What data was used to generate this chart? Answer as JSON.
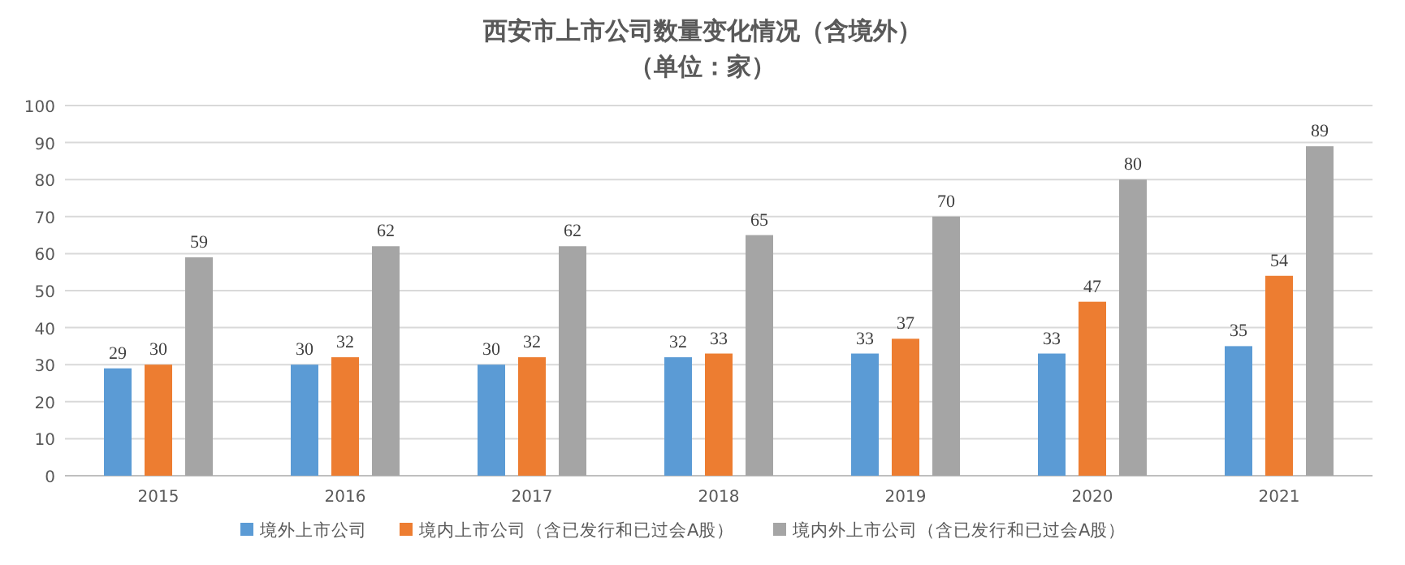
{
  "chart_data": {
    "type": "bar",
    "title": "西安市上市公司数量变化情况（含境外）",
    "subtitle": "（单位：家）",
    "categories": [
      "2015",
      "2016",
      "2017",
      "2018",
      "2019",
      "2020",
      "2021"
    ],
    "series": [
      {
        "name": "境外上市公司",
        "color": "#5b9bd5",
        "values": [
          29,
          30,
          30,
          32,
          33,
          33,
          35
        ]
      },
      {
        "name": "境内上市公司（含已发行和已过会A股）",
        "color": "#ed7d31",
        "values": [
          30,
          32,
          32,
          33,
          37,
          47,
          54
        ]
      },
      {
        "name": "境内外上市公司（含已发行和已过会A股）",
        "color": "#a5a5a5",
        "values": [
          59,
          62,
          62,
          65,
          70,
          80,
          89
        ]
      }
    ],
    "ylim": [
      0,
      100
    ],
    "yticks": [
      0,
      10,
      20,
      30,
      40,
      50,
      60,
      70,
      80,
      90,
      100
    ],
    "grid": "y",
    "legend": "bottom",
    "data_labels": true
  }
}
